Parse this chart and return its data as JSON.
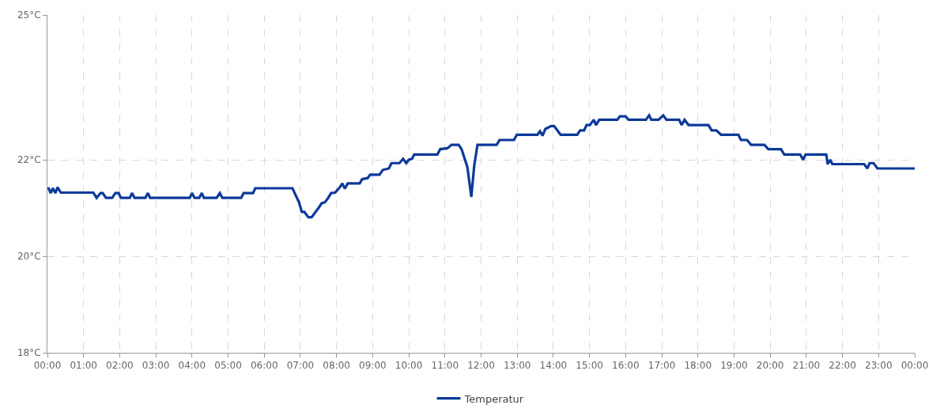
{
  "chart_data": {
    "type": "line",
    "x": [
      0.02,
      0.09,
      0.15,
      0.22,
      0.28,
      0.37,
      1.27,
      1.36,
      1.47,
      1.53,
      1.62,
      1.79,
      1.88,
      1.97,
      2.03,
      2.28,
      2.34,
      2.41,
      2.71,
      2.78,
      2.84,
      3.94,
      4.0,
      4.07,
      4.2,
      4.27,
      4.33,
      4.68,
      4.77,
      4.84,
      5.36,
      5.43,
      5.69,
      5.75,
      6.78,
      6.96,
      7.04,
      7.11,
      7.22,
      7.31,
      7.5,
      7.59,
      7.68,
      7.77,
      7.85,
      7.96,
      8.09,
      8.16,
      8.23,
      8.31,
      8.64,
      8.71,
      8.86,
      8.93,
      9.19,
      9.28,
      9.45,
      9.52,
      9.74,
      9.84,
      9.93,
      10.0,
      10.09,
      10.15,
      10.79,
      10.87,
      11.07,
      11.18,
      11.38,
      11.46,
      11.62,
      11.73,
      11.81,
      11.9,
      12.43,
      12.51,
      12.91,
      12.99,
      13.56,
      13.63,
      13.7,
      13.78,
      13.94,
      14.02,
      14.2,
      14.66,
      14.74,
      14.85,
      14.92,
      15.01,
      15.12,
      15.18,
      15.27,
      15.77,
      15.84,
      16.0,
      16.08,
      16.56,
      16.65,
      16.71,
      16.91,
      17.04,
      17.13,
      17.48,
      17.55,
      17.63,
      17.74,
      18.29,
      18.38,
      18.51,
      18.64,
      19.12,
      19.19,
      19.36,
      19.47,
      19.84,
      19.95,
      20.3,
      20.39,
      20.83,
      20.91,
      20.98,
      21.55,
      21.59,
      21.66,
      21.72,
      22.6,
      22.69,
      22.75,
      22.86,
      22.97,
      24.0
    ],
    "series": [
      {
        "name": "Temperatur",
        "color": "#0d3a9a",
        "values": [
          21.43,
          21.31,
          21.41,
          21.31,
          21.43,
          21.32,
          21.32,
          21.21,
          21.31,
          21.31,
          21.21,
          21.21,
          21.31,
          21.31,
          21.21,
          21.21,
          21.31,
          21.21,
          21.21,
          21.31,
          21.21,
          21.21,
          21.31,
          21.21,
          21.21,
          21.31,
          21.21,
          21.21,
          21.31,
          21.21,
          21.21,
          21.31,
          21.31,
          21.41,
          21.41,
          21.12,
          20.92,
          20.92,
          20.81,
          20.81,
          21.0,
          21.1,
          21.12,
          21.21,
          21.31,
          21.32,
          21.43,
          21.51,
          21.4,
          21.51,
          21.51,
          21.6,
          21.62,
          21.69,
          21.69,
          21.79,
          21.82,
          21.93,
          21.93,
          22.02,
          21.93,
          22.0,
          22.02,
          22.11,
          22.11,
          22.22,
          22.24,
          22.31,
          22.31,
          22.22,
          21.85,
          21.23,
          21.88,
          22.31,
          22.31,
          22.41,
          22.41,
          22.52,
          22.52,
          22.59,
          22.5,
          22.64,
          22.7,
          22.7,
          22.52,
          22.52,
          22.61,
          22.61,
          22.72,
          22.72,
          22.83,
          22.72,
          22.83,
          22.83,
          22.9,
          22.9,
          22.83,
          22.83,
          22.92,
          22.83,
          22.83,
          22.92,
          22.83,
          22.83,
          22.72,
          22.83,
          22.72,
          22.72,
          22.61,
          22.61,
          22.52,
          22.52,
          22.41,
          22.41,
          22.31,
          22.31,
          22.22,
          22.22,
          22.11,
          22.11,
          22.0,
          22.11,
          22.11,
          21.91,
          22.0,
          21.91,
          21.91,
          21.82,
          21.93,
          21.93,
          21.82,
          21.82
        ]
      }
    ],
    "ylim": [
      18,
      25
    ],
    "yticks": [
      {
        "value": 18,
        "label": "18°C"
      },
      {
        "value": 20,
        "label": "20°C"
      },
      {
        "value": 22,
        "label": "22°C"
      },
      {
        "value": 25,
        "label": "25°C"
      }
    ],
    "xlim": [
      0,
      24
    ],
    "xticks": [
      {
        "value": 0,
        "label": "00:00"
      },
      {
        "value": 1,
        "label": "01:00"
      },
      {
        "value": 2,
        "label": "02:00"
      },
      {
        "value": 3,
        "label": "03:00"
      },
      {
        "value": 4,
        "label": "04:00"
      },
      {
        "value": 5,
        "label": "05:00"
      },
      {
        "value": 6,
        "label": "06:00"
      },
      {
        "value": 7,
        "label": "07:00"
      },
      {
        "value": 8,
        "label": "08:00"
      },
      {
        "value": 9,
        "label": "09:00"
      },
      {
        "value": 10,
        "label": "10:00"
      },
      {
        "value": 11,
        "label": "11:00"
      },
      {
        "value": 12,
        "label": "12:00"
      },
      {
        "value": 13,
        "label": "13:00"
      },
      {
        "value": 14,
        "label": "14:00"
      },
      {
        "value": 15,
        "label": "15:00"
      },
      {
        "value": 16,
        "label": "16:00"
      },
      {
        "value": 17,
        "label": "17:00"
      },
      {
        "value": 18,
        "label": "18:00"
      },
      {
        "value": 19,
        "label": "19:00"
      },
      {
        "value": 20,
        "label": "20:00"
      },
      {
        "value": 21,
        "label": "21:00"
      },
      {
        "value": 22,
        "label": "22:00"
      },
      {
        "value": 23,
        "label": "23:00"
      },
      {
        "value": 24,
        "label": "00:00"
      }
    ],
    "grid": true,
    "legend": "bottom",
    "marker": "none",
    "line_style": "solid"
  }
}
